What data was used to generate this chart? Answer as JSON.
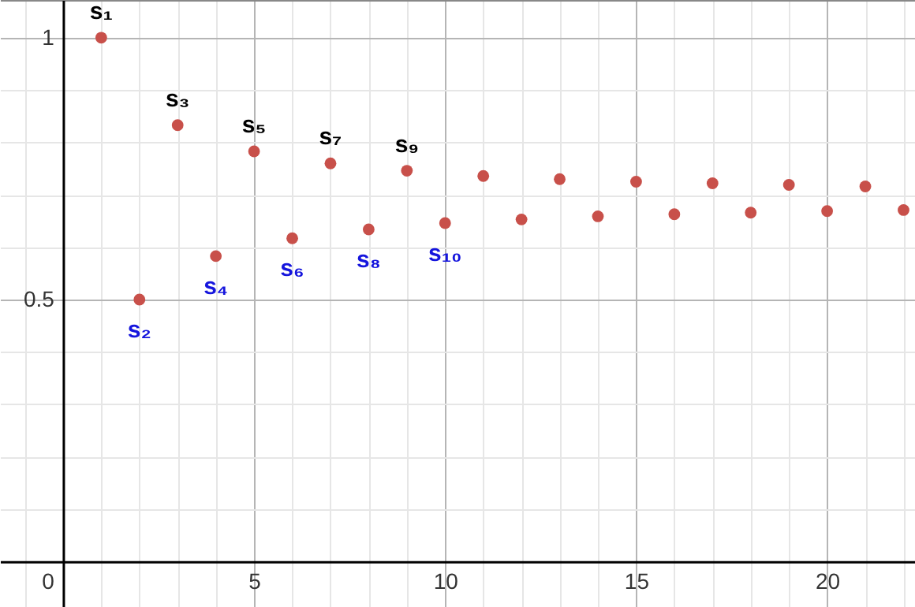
{
  "chart_data": {
    "type": "scatter",
    "x": [
      1,
      2,
      3,
      4,
      5,
      6,
      7,
      8,
      9,
      10,
      11,
      12,
      13,
      14,
      15,
      16,
      17,
      18,
      19,
      20,
      21,
      22
    ],
    "series": [
      {
        "color": "#c8504a",
        "values": [
          1.0,
          0.5,
          0.833,
          0.583,
          0.783,
          0.617,
          0.76,
          0.634,
          0.746,
          0.646,
          0.736,
          0.653,
          0.73,
          0.659,
          0.725,
          0.663,
          0.722,
          0.666,
          0.719,
          0.669,
          0.716,
          0.671
        ]
      }
    ],
    "xlim": [
      -1.65,
      22.3
    ],
    "ylim": [
      -0.087,
      1.072
    ],
    "xticks": [
      0,
      5,
      10,
      15,
      20
    ],
    "yticks": [
      0.5,
      1
    ],
    "grid": true,
    "marker": "circle",
    "annotations": [
      {
        "text": "s₁",
        "x": 1,
        "y": 1.0
      },
      {
        "text": "s₂",
        "x": 2,
        "y": 0.5
      },
      {
        "text": "s₃",
        "x": 3,
        "y": 0.833
      },
      {
        "text": "s₄",
        "x": 4,
        "y": 0.583
      },
      {
        "text": "s₅",
        "x": 5,
        "y": 0.783
      },
      {
        "text": "s₆",
        "x": 6,
        "y": 0.617
      },
      {
        "text": "s₇",
        "x": 7,
        "y": 0.76
      },
      {
        "text": "s₈",
        "x": 8,
        "y": 0.634
      },
      {
        "text": "s₉",
        "x": 9,
        "y": 0.746
      },
      {
        "text": "s₁₀",
        "x": 10,
        "y": 0.646
      }
    ]
  }
}
